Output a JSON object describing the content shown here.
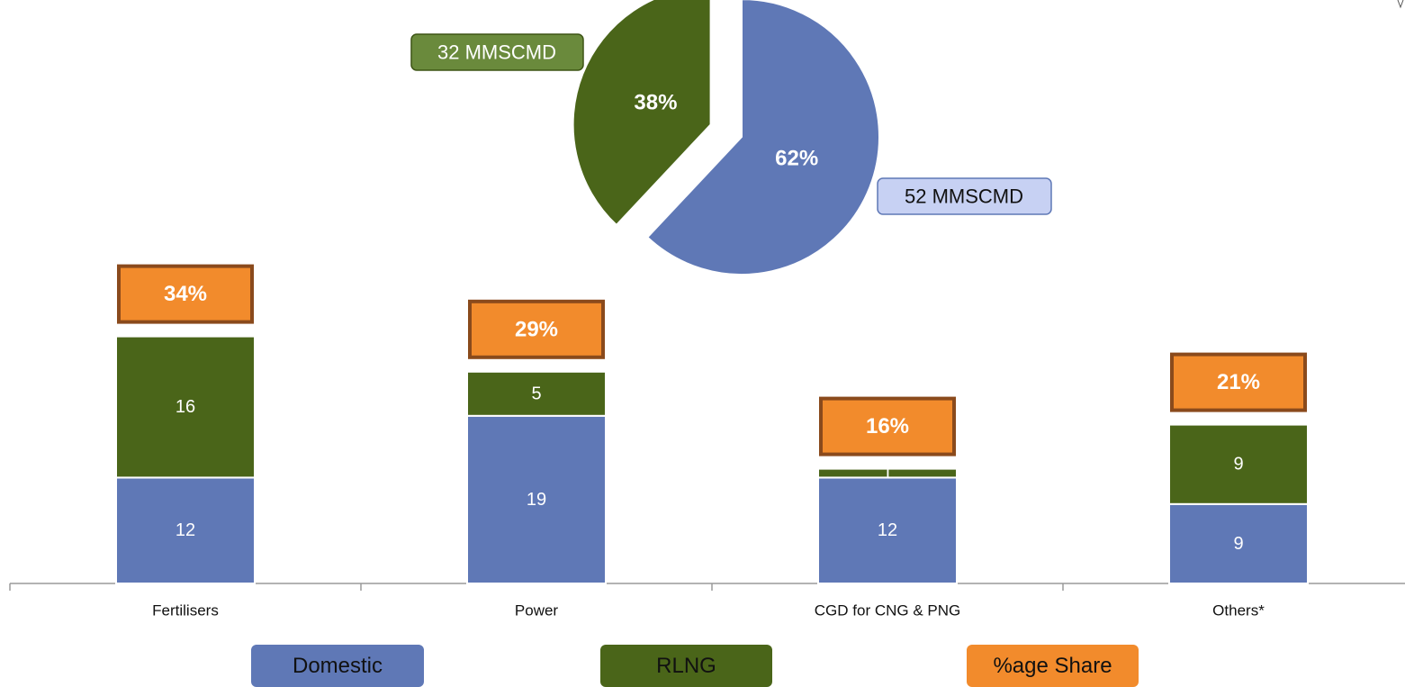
{
  "chart_data": [
    {
      "type": "bar",
      "stacked": true,
      "categories": [
        "Fertilisers",
        "Power",
        "CGD for CNG & PNG",
        "Others*"
      ],
      "series": [
        {
          "name": "Domestic",
          "values": [
            12,
            19,
            12,
            9
          ],
          "value_labels": [
            "12",
            "19",
            "12",
            "9"
          ]
        },
        {
          "name": "RLNG",
          "values": [
            16,
            5,
            1,
            9
          ],
          "value_labels": [
            "16",
            "5",
            "1",
            "9"
          ]
        }
      ],
      "share_labels": [
        "34%",
        "29%",
        "16%",
        "21%"
      ],
      "ylim": [
        0,
        30
      ],
      "title": "",
      "xlabel": "",
      "ylabel": "",
      "grid": false
    },
    {
      "type": "pie",
      "slices": [
        {
          "name": "Domestic",
          "value": 62,
          "percent_label": "62%",
          "callout": "52 MMSCMD"
        },
        {
          "name": "RLNG",
          "value": 38,
          "percent_label": "38%",
          "callout": "32 MMSCMD",
          "exploded": true
        }
      ]
    }
  ],
  "legend": {
    "placement": "bottom",
    "items": [
      {
        "label": "Domestic",
        "color": "#5f78b6"
      },
      {
        "label": "RLNG",
        "color": "#4a6519"
      },
      {
        "label": "%age Share",
        "color": "#f28b2c"
      }
    ]
  },
  "colors": {
    "domestic": "#5f78b6",
    "rlng": "#4a6519",
    "share": "#f28b2c",
    "share_border": "#8a4a1c",
    "axis": "#9a9a9a"
  }
}
